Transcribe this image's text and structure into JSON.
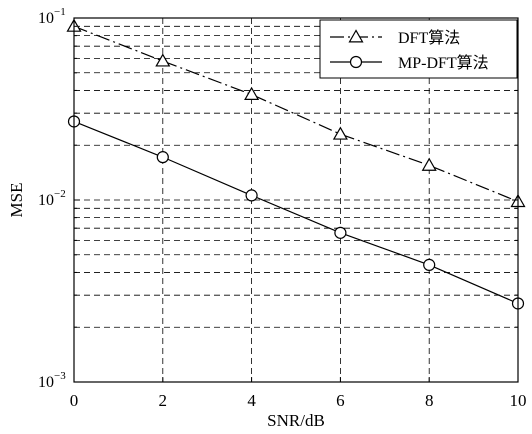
{
  "chart_data": {
    "type": "line",
    "xlabel": "SNR/dB",
    "ylabel": "MSE",
    "xlim": [
      0,
      10
    ],
    "ylim": [
      0.001,
      0.1
    ],
    "y_scale": "log",
    "grid": true,
    "legend_position": "top-right",
    "x": [
      0,
      2,
      4,
      6,
      8,
      10
    ],
    "xticks": [
      "0",
      "2",
      "4",
      "6",
      "8",
      "10"
    ],
    "yticks": [
      {
        "base": "10",
        "exp": "−1",
        "value": 0.1
      },
      {
        "base": "10",
        "exp": "−2",
        "value": 0.01
      },
      {
        "base": "10",
        "exp": "−3",
        "value": 0.001
      }
    ],
    "series": [
      {
        "name": "DFT算法",
        "marker": "triangle",
        "line_style": "dash-dot",
        "values": [
          0.09,
          0.058,
          0.038,
          0.023,
          0.0155,
          0.0098
        ]
      },
      {
        "name": "MP-DFT算法",
        "marker": "circle",
        "line_style": "solid",
        "values": [
          0.027,
          0.0172,
          0.0106,
          0.0066,
          0.0044,
          0.0027
        ]
      }
    ]
  },
  "colors": {
    "line": "#000000",
    "background": "#ffffff"
  }
}
